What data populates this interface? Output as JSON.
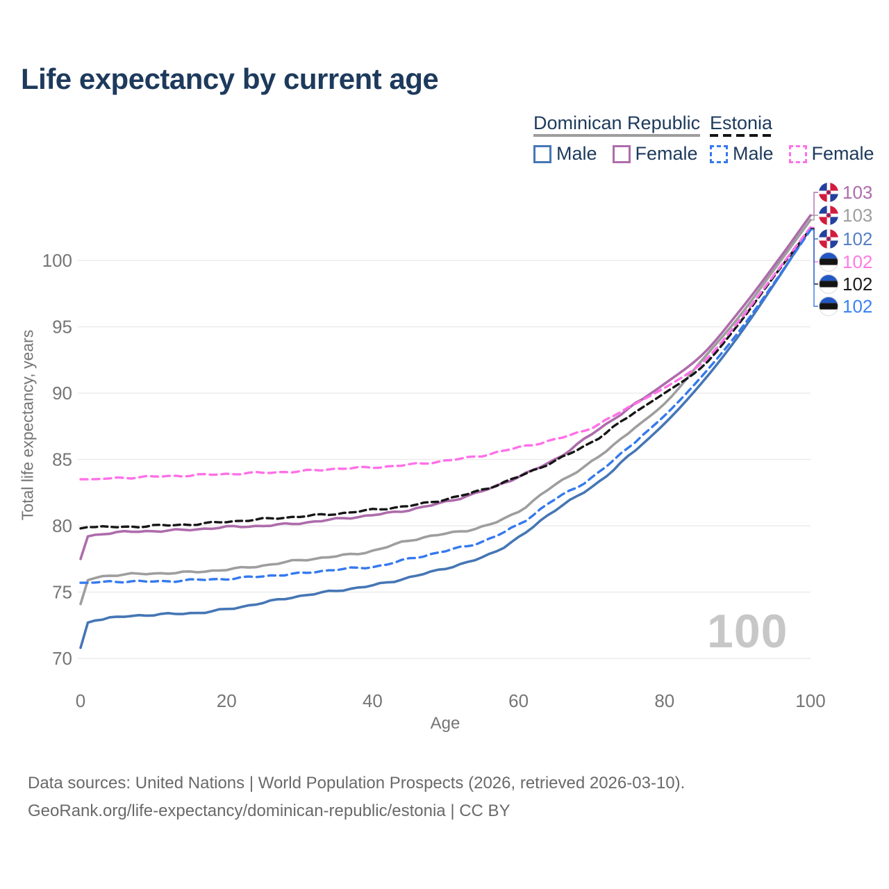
{
  "title": "Life expectancy by current age",
  "legend": {
    "groups": [
      {
        "label": "Dominican Republic",
        "underline_style": "solid",
        "underline_color": "#9e9e9e",
        "items": [
          {
            "label": "Male",
            "color": "#4576b5",
            "dash": false
          },
          {
            "label": "Female",
            "color": "#ad6cab",
            "dash": false
          }
        ]
      },
      {
        "label": "Estonia",
        "underline_style": "dashed",
        "underline_color": "#141414",
        "items": [
          {
            "label": "Male",
            "color": "#3579ee",
            "dash": true
          },
          {
            "label": "Female",
            "color": "#ff70e8",
            "dash": true
          }
        ]
      }
    ]
  },
  "watermark": "100",
  "footer": {
    "line1": "Data sources: United Nations | World Population Prospects (2026, retrieved 2026-03-10).",
    "line2": "GeoRank.org/life-expectancy/dominican-republic/estonia | CC BY"
  },
  "colors": {
    "title_text": "#1d3a5c",
    "axis_text": "#757575",
    "gridline": "#ececec",
    "watermark": "#c7c7c7",
    "footer_text": "#696969"
  },
  "chart_data": {
    "type": "line",
    "title": "Life expectancy by current age",
    "xlabel": "Age",
    "ylabel": "Total life expectancy, years",
    "xlim": [
      0,
      100
    ],
    "ylim": [
      70,
      103.5
    ],
    "x_ticks": [
      0,
      20,
      40,
      60,
      80,
      100
    ],
    "y_ticks": [
      70,
      75,
      80,
      85,
      90,
      95,
      100
    ],
    "grid": "horizontal",
    "legend_position": "top-right",
    "x": [
      0,
      1,
      5,
      10,
      15,
      20,
      25,
      30,
      35,
      40,
      45,
      50,
      55,
      60,
      65,
      70,
      75,
      80,
      85,
      90,
      95,
      100
    ],
    "series": [
      {
        "id": "dr-total",
        "name": "Dominican Republic",
        "color": "#9e9e9e",
        "dash": null,
        "width": 3.6,
        "values": [
          74.1,
          75.9,
          76.3,
          76.4,
          76.5,
          76.7,
          77.0,
          77.4,
          77.7,
          78.1,
          78.9,
          79.4,
          79.9,
          81.1,
          83.1,
          84.8,
          87.0,
          89.2,
          92.4,
          95.6,
          99.3,
          103.05
        ]
      },
      {
        "id": "dr-female",
        "name": "Dominican Republic Female",
        "color": "#ad6cab",
        "dash": null,
        "width": 3.6,
        "values": [
          77.5,
          79.2,
          79.5,
          79.6,
          79.7,
          79.9,
          80.0,
          80.2,
          80.5,
          80.8,
          81.2,
          81.8,
          82.6,
          83.7,
          85.0,
          86.9,
          88.8,
          90.7,
          92.8,
          96.0,
          99.6,
          103.4
        ]
      },
      {
        "id": "dr-male",
        "name": "Dominican Republic Male",
        "color": "#4576b5",
        "dash": null,
        "width": 3.6,
        "values": [
          70.8,
          72.7,
          73.1,
          73.3,
          73.4,
          73.7,
          74.2,
          74.7,
          75.1,
          75.5,
          76.1,
          76.8,
          77.6,
          79.1,
          81.2,
          82.9,
          85.2,
          87.7,
          90.7,
          94.2,
          98.2,
          102.45
        ]
      },
      {
        "id": "ee-total",
        "name": "Estonia",
        "color": "#161616",
        "dash": "9 6",
        "width": 3.4,
        "values": [
          79.8,
          79.9,
          79.9,
          80.0,
          80.1,
          80.3,
          80.5,
          80.7,
          80.9,
          81.2,
          81.5,
          82.0,
          82.7,
          83.7,
          84.9,
          86.3,
          88.2,
          90.0,
          91.9,
          95.1,
          98.8,
          102.4
        ]
      },
      {
        "id": "ee-female",
        "name": "Estonia Female",
        "color": "#ff70e8",
        "dash": "10 7",
        "width": 3.4,
        "values": [
          83.5,
          83.5,
          83.6,
          83.7,
          83.8,
          83.9,
          84.0,
          84.1,
          84.3,
          84.4,
          84.6,
          84.9,
          85.3,
          85.9,
          86.5,
          87.4,
          88.9,
          90.4,
          92.2,
          95.3,
          98.9,
          102.5
        ]
      },
      {
        "id": "ee-male",
        "name": "Estonia Male",
        "color": "#3579ee",
        "dash": "10 7",
        "width": 3.4,
        "values": [
          75.7,
          75.7,
          75.8,
          75.8,
          75.9,
          76.0,
          76.2,
          76.4,
          76.7,
          76.9,
          77.5,
          78.1,
          78.8,
          80.1,
          82.0,
          83.6,
          85.9,
          88.3,
          91.2,
          94.5,
          98.3,
          102.3
        ]
      }
    ],
    "right_labels": [
      {
        "value": "103",
        "series": "dr-female",
        "flag": "dominican-republic-flag-icon",
        "color": "#ad6cab"
      },
      {
        "value": "103",
        "series": "dr-total",
        "flag": "dominican-republic-flag-icon",
        "color": "#9e9e9e"
      },
      {
        "value": "102",
        "series": "dr-male",
        "flag": "dominican-republic-flag-icon",
        "color": "#5580c5"
      },
      {
        "value": "102",
        "series": "ee-female",
        "flag": "estonia-flag-icon",
        "color": "#ff7ae6"
      },
      {
        "value": "102",
        "series": "ee-total",
        "flag": "estonia-flag-icon",
        "color": "#1a1a1a"
      },
      {
        "value": "102",
        "series": "ee-male",
        "flag": "estonia-flag-icon",
        "color": "#3b82f6"
      }
    ]
  }
}
